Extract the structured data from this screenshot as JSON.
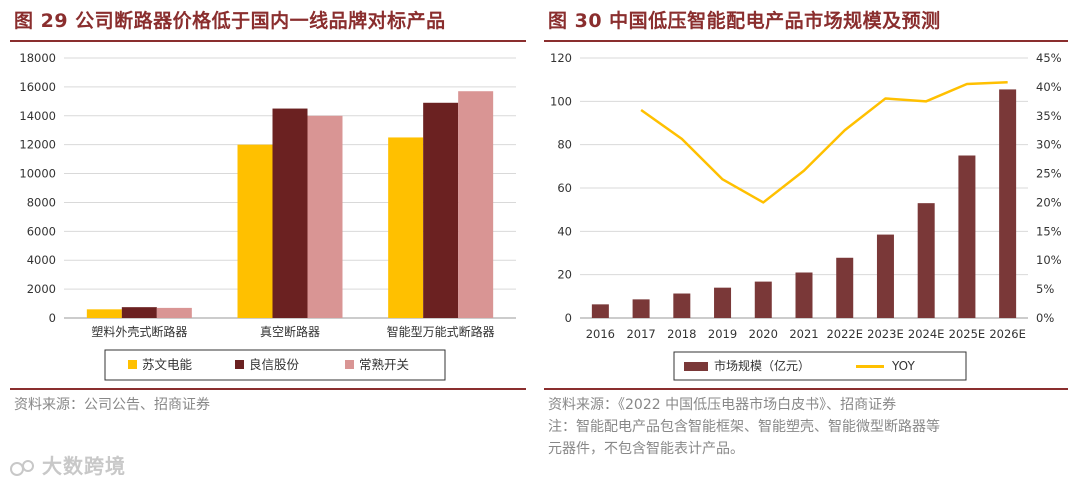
{
  "left": {
    "title": "图 29 公司断路器价格低于国内一线品牌对标产品",
    "source": "资料来源：公司公告、招商证券"
  },
  "right": {
    "title": "图 30 中国低压智能配电产品市场规模及预测",
    "source": "资料来源：《2022 中国低压电器市场白皮书》、招商证券",
    "note_line1": "注：智能配电产品包含智能框架、智能塑壳、智能微型断路器等",
    "note_line2": "元器件，不包含智能表计产品。"
  },
  "watermark": {
    "text": "大数跨境",
    "icon": "watermark-logo-icon"
  },
  "colors": {
    "title": "#8a2e2e",
    "gold": "#ffc000",
    "maroon": "#6b2121",
    "pink": "#d99594",
    "bar2": "#7a3838",
    "line": "#ffc000"
  },
  "chart_data": [
    {
      "type": "bar",
      "categories": [
        "塑料外壳式断路器",
        "真空断路器",
        "智能型万能式断路器"
      ],
      "series": [
        {
          "name": "苏文电能",
          "values": [
            600,
            12000,
            12500
          ]
        },
        {
          "name": "良信股份",
          "values": [
            750,
            14500,
            14900
          ]
        },
        {
          "name": "常熟开关",
          "values": [
            700,
            14000,
            15700
          ]
        }
      ],
      "y_ticks": [
        "0",
        "2000",
        "4000",
        "6000",
        "8000",
        "10000",
        "12000",
        "14000",
        "16000",
        "18000"
      ],
      "ylim": [
        0,
        18000
      ],
      "grid": true,
      "legend": "bottom"
    },
    {
      "type": "bar",
      "categories": [
        "2016",
        "2017",
        "2018",
        "2019",
        "2020",
        "2021",
        "2022E",
        "2023E",
        "2024E",
        "2025E",
        "2026E"
      ],
      "series": [
        {
          "name": "市场规模（亿元）",
          "type": "bar",
          "axis": "left",
          "values": [
            6.3,
            8.6,
            11.3,
            14.0,
            16.8,
            21.0,
            27.8,
            38.5,
            53.0,
            75.0,
            105.5
          ]
        },
        {
          "name": "YOY",
          "type": "line",
          "axis": "right",
          "values": [
            null,
            0.36,
            0.31,
            0.24,
            0.2,
            0.255,
            0.325,
            0.38,
            0.375,
            0.405,
            0.408
          ]
        }
      ],
      "y_ticks": [
        "0",
        "20",
        "40",
        "60",
        "80",
        "100",
        "120"
      ],
      "y2_ticks": [
        "0%",
        "5%",
        "10%",
        "15%",
        "20%",
        "25%",
        "30%",
        "35%",
        "40%",
        "45%"
      ],
      "ylim": [
        0,
        120
      ],
      "y2lim": [
        0,
        0.45
      ],
      "grid": true,
      "legend": "bottom"
    }
  ]
}
